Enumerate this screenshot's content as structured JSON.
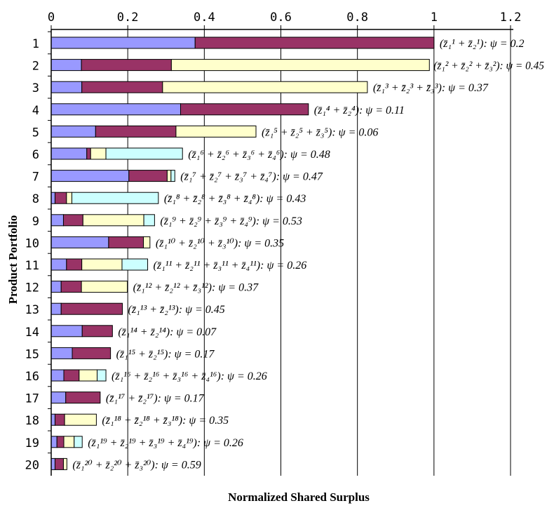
{
  "chart_data": {
    "type": "bar",
    "orientation": "horizontal",
    "stacked": true,
    "xlabel": "Normalized Shared Surplus",
    "ylabel": "Product Portfolio",
    "xlim": [
      0,
      1.2
    ],
    "xticks": [
      "0",
      "0.2",
      "0.4",
      "0.6",
      "0.8",
      "1",
      "1.2"
    ],
    "xtick_values": [
      0,
      0.2,
      0.4,
      0.6,
      0.8,
      1.0,
      1.2
    ],
    "xaxis_position": "top",
    "grid": "vertical",
    "colors": [
      "#9999ff",
      "#993366",
      "#ffffcc",
      "#ccffff"
    ],
    "categories": [
      "1",
      "2",
      "3",
      "4",
      "5",
      "6",
      "7",
      "8",
      "9",
      "10",
      "11",
      "12",
      "13",
      "14",
      "15",
      "16",
      "17",
      "18",
      "19",
      "20"
    ],
    "rows": [
      {
        "label": "1",
        "segments": [
          0.376,
          0.624
        ],
        "annotation": "(z̄₁¹ + z̄₂¹): ψ = 0.2"
      },
      {
        "label": "2",
        "segments": [
          0.079,
          0.235,
          0.674
        ],
        "annotation": "(z̄₁² + z̄₂² + z̄₃²): ψ = 0.45"
      },
      {
        "label": "3",
        "segments": [
          0.08,
          0.211,
          0.535
        ],
        "annotation": "(z̄₁³ + z̄₂³ + z̄₃³): ψ = 0.37"
      },
      {
        "label": "4",
        "segments": [
          0.338,
          0.334
        ],
        "annotation": "(z̄₁⁴ + z̄₂⁴): ψ = 0.11"
      },
      {
        "label": "5",
        "segments": [
          0.116,
          0.21,
          0.209
        ],
        "annotation": "(z̄₁⁵ + z̄₂⁵ + z̄₃⁵): ψ = 0.06"
      },
      {
        "label": "6",
        "segments": [
          0.093,
          0.01,
          0.04,
          0.2
        ],
        "annotation": "(z̄₁⁶ + z̄₂⁶ + z̄₃⁶ + z̄₄⁶): ψ = 0.48"
      },
      {
        "label": "7",
        "segments": [
          0.203,
          0.1,
          0.01,
          0.01
        ],
        "annotation": "(z̄₁⁷ + z̄₂⁷ + z̄₃⁷ + z̄₄⁷): ψ = 0.47"
      },
      {
        "label": "8",
        "segments": [
          0.01,
          0.03,
          0.014,
          0.226
        ],
        "annotation": "(z̄₁⁸ + z̄₂⁸ + z̄₃⁸ + z̄₄⁸): ψ = 0.43"
      },
      {
        "label": "9",
        "segments": [
          0.032,
          0.051,
          0.159,
          0.028
        ],
        "annotation": "(z̄₁⁹ + z̄₂⁹ + z̄₃⁹ + z̄₄⁹): ψ = 0.53"
      },
      {
        "label": "10",
        "segments": [
          0.15,
          0.091,
          0.017
        ],
        "annotation": "(z̄₁¹⁰ + z̄₂¹⁰ + z̄₃¹⁰): ψ = 0.35"
      },
      {
        "label": "11",
        "segments": [
          0.04,
          0.04,
          0.105,
          0.067
        ],
        "annotation": "(z̄₁¹¹ + z̄₂¹¹ + z̄₃¹¹ + z̄₄¹¹): ψ = 0.26"
      },
      {
        "label": "12",
        "segments": [
          0.026,
          0.053,
          0.12
        ],
        "annotation": "(z̄₁¹² + z̄₂¹² + z̄₃¹²): ψ = 0.37"
      },
      {
        "label": "13",
        "segments": [
          0.026,
          0.16
        ],
        "annotation": "(z̄₁¹³ + z̄₂¹³): ψ = 0.45"
      },
      {
        "label": "14",
        "segments": [
          0.081,
          0.079
        ],
        "annotation": "(z̄₁¹⁴ + z̄₂¹⁴): ψ = 0.07"
      },
      {
        "label": "15",
        "segments": [
          0.055,
          0.1
        ],
        "annotation": "(z̄₁¹⁵ + z̄₂¹⁵): ψ = 0.17"
      },
      {
        "label": "16",
        "segments": [
          0.033,
          0.04,
          0.047,
          0.023
        ],
        "annotation": "(z̄₁¹⁶ + z̄₂¹⁶ + z̄₃¹⁶ + z̄₄¹⁶): ψ = 0.26"
      },
      {
        "label": "17",
        "segments": [
          0.038,
          0.09
        ],
        "annotation": "(z̄₁¹⁷ + z̄₂¹⁷): ψ = 0.17"
      },
      {
        "label": "18",
        "segments": [
          0.01,
          0.025,
          0.083
        ],
        "annotation": "(z̄₁¹⁸ + z̄₂¹⁸ + z̄₃¹⁸): ψ = 0.35"
      },
      {
        "label": "19",
        "segments": [
          0.015,
          0.018,
          0.027,
          0.021
        ],
        "annotation": "(z̄₁¹⁹ + z̄₂¹⁹ + z̄₃¹⁹ + z̄₄¹⁹): ψ = 0.26"
      },
      {
        "label": "20",
        "segments": [
          0.01,
          0.022,
          0.009
        ],
        "annotation": "(z̄₁²⁰ + z̄₂²⁰ + z̄₃²⁰): ψ = 0.59"
      }
    ]
  }
}
